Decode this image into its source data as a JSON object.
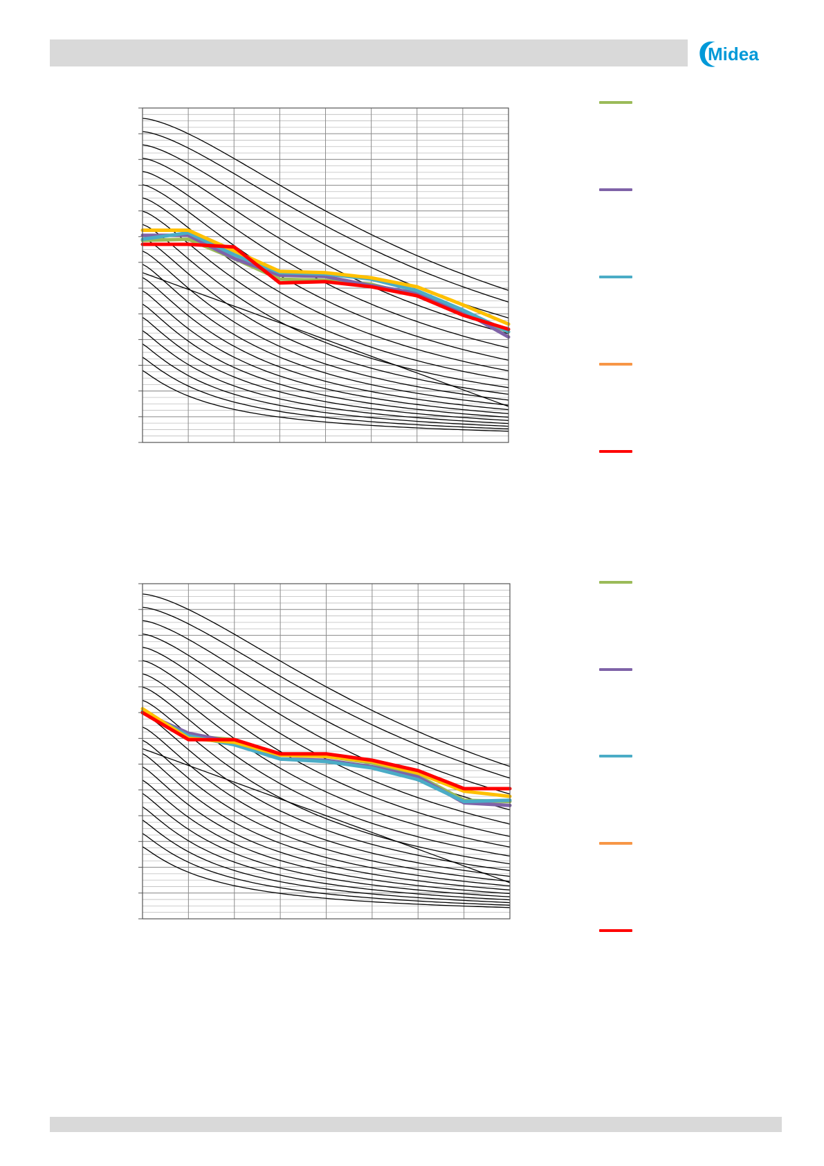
{
  "page": {
    "brand": "Midea",
    "brand_color": "#0099d8",
    "header_bar_color": "#d9d9d9",
    "footer_bar_color": "#d9d9d9"
  },
  "legend_colors": [
    "#9bbb59",
    "#7f63a8",
    "#4bacc6",
    "#f79646",
    "#ff0000"
  ],
  "chart_data": [
    {
      "type": "line",
      "title": "",
      "xlabel": "",
      "ylabel": "",
      "tick_labels_visible": false,
      "x": [
        0,
        1,
        2,
        3,
        4,
        5,
        6,
        7,
        8
      ],
      "xlim": [
        0,
        8
      ],
      "ylim": [
        0,
        13
      ],
      "grid": true,
      "background_curves_count": 20,
      "series": [
        {
          "color": "#9bbb59",
          "values": [
            7.85,
            7.9,
            7.15,
            6.35,
            6.3,
            6.15,
            5.7,
            5.0,
            4.3
          ]
        },
        {
          "color": "#7f63a8",
          "values": [
            8.05,
            8.05,
            7.15,
            6.5,
            6.45,
            6.1,
            5.8,
            5.1,
            4.1
          ]
        },
        {
          "color": "#4bacc6",
          "values": [
            7.9,
            8.15,
            7.3,
            6.6,
            6.55,
            6.35,
            5.9,
            5.15,
            4.3
          ]
        },
        {
          "color": "#ffc000",
          "values": [
            8.25,
            8.25,
            7.45,
            6.65,
            6.6,
            6.4,
            6.05,
            5.35,
            4.6
          ]
        },
        {
          "color": "#ff0000",
          "values": [
            7.7,
            7.7,
            7.6,
            6.2,
            6.25,
            6.05,
            5.7,
            4.95,
            4.4
          ]
        }
      ]
    },
    {
      "type": "line",
      "title": "",
      "xlabel": "",
      "ylabel": "",
      "tick_labels_visible": false,
      "x": [
        0,
        1,
        2,
        3,
        4,
        5,
        6,
        7,
        8
      ],
      "xlim": [
        0,
        8
      ],
      "ylim": [
        0,
        13
      ],
      "grid": true,
      "background_curves_count": 20,
      "series": [
        {
          "color": "#9bbb59",
          "values": [
            8.0,
            7.1,
            6.95,
            6.35,
            6.3,
            6.05,
            5.55,
            4.6,
            4.55
          ]
        },
        {
          "color": "#7f63a8",
          "values": [
            8.0,
            7.2,
            6.85,
            6.2,
            6.15,
            5.9,
            5.5,
            4.5,
            4.4
          ]
        },
        {
          "color": "#4bacc6",
          "values": [
            8.05,
            7.1,
            6.75,
            6.2,
            6.1,
            5.85,
            5.4,
            4.55,
            4.6
          ]
        },
        {
          "color": "#ffc000",
          "values": [
            8.15,
            7.0,
            6.85,
            6.35,
            6.3,
            6.1,
            5.65,
            4.95,
            4.75
          ]
        },
        {
          "color": "#ff0000",
          "values": [
            8.0,
            6.95,
            6.95,
            6.4,
            6.4,
            6.15,
            5.75,
            5.05,
            5.05
          ]
        }
      ]
    }
  ]
}
